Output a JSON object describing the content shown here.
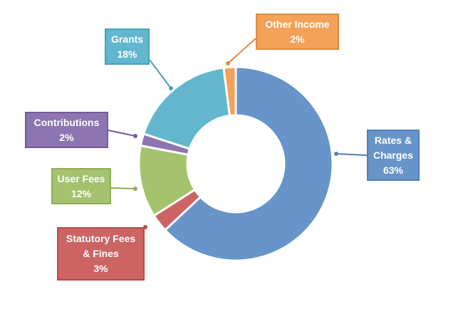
{
  "chart_data": {
    "type": "pie",
    "variant": "donut",
    "title": "",
    "legend": "none",
    "labels_outside": true,
    "slices": [
      {
        "name": "Rates & Charges",
        "value": 63,
        "label": "63%",
        "label_lines": [
          "Rates &",
          "Charges"
        ],
        "fill": "#6794c9",
        "border": "#4f7fba"
      },
      {
        "name": "Statutory Fees & Fines",
        "value": 3,
        "label": "3%",
        "label_lines": [
          "Statutory Fees",
          "& Fines"
        ],
        "fill": "#cc6464",
        "border": "#b54f4f"
      },
      {
        "name": "User Fees",
        "value": 12,
        "label": "12%",
        "label_lines": [
          "User Fees"
        ],
        "fill": "#a5c36d",
        "border": "#8cae55"
      },
      {
        "name": "Contributions",
        "value": 2,
        "label": "2%",
        "label_lines": [
          "Contributions"
        ],
        "fill": "#8d75b2",
        "border": "#745c9c"
      },
      {
        "name": "Grants",
        "value": 18,
        "label": "18%",
        "label_lines": [
          "Grants"
        ],
        "fill": "#62b7cf",
        "border": "#49a0ba"
      },
      {
        "name": "Other Income",
        "value": 2,
        "label": "2%",
        "label_lines": [
          "Other Income"
        ],
        "fill": "#f4a25a",
        "border": "#e08a3f"
      }
    ]
  }
}
